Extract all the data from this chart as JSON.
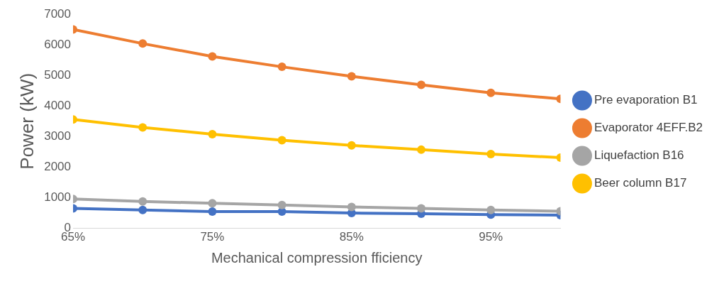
{
  "chart_data": {
    "type": "line",
    "xlabel": "Mechanical compression fficiency",
    "ylabel": "Power (kW)",
    "x": [
      65,
      70,
      75,
      80,
      85,
      90,
      95,
      100
    ],
    "xlim": [
      65,
      100
    ],
    "xticks": [
      {
        "value": 65,
        "label": "65%"
      },
      {
        "value": 75,
        "label": "75%"
      },
      {
        "value": 85,
        "label": "85%"
      },
      {
        "value": 95,
        "label": "95%"
      }
    ],
    "ylim": [
      0,
      7000
    ],
    "yticks": [
      0,
      1000,
      2000,
      3000,
      4000,
      5000,
      6000,
      7000
    ],
    "grid": false,
    "legend": "right",
    "marker": "circle",
    "line_style": "solid",
    "series": [
      {
        "name": "Pre evaporation B1",
        "color": "#4472c4",
        "values": [
          650,
          600,
          550,
          550,
          500,
          480,
          450,
          430
        ]
      },
      {
        "name": "Evaporator 4EFF.B2",
        "color": "#ed7d31",
        "values": [
          6500,
          6040,
          5620,
          5280,
          4970,
          4690,
          4430,
          4230
        ]
      },
      {
        "name": "Liquefaction B16",
        "color": "#a5a5a5",
        "values": [
          960,
          880,
          820,
          760,
          700,
          650,
          600,
          560
        ]
      },
      {
        "name": "Beer column B17",
        "color": "#ffc000",
        "values": [
          3560,
          3300,
          3080,
          2880,
          2710,
          2570,
          2430,
          2310
        ]
      }
    ]
  }
}
